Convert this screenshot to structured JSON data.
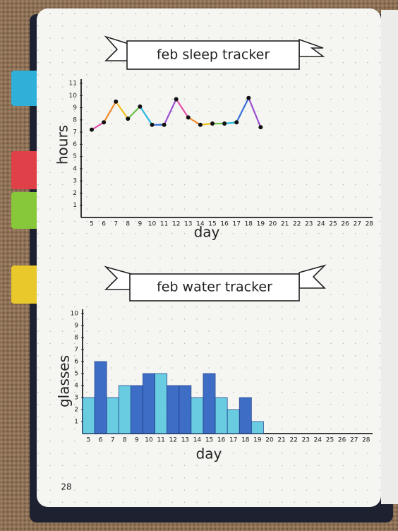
{
  "chart_data": [
    {
      "type": "line",
      "title": "feb sleep tracker",
      "y_label": "hours",
      "x_label": "day",
      "categories": [
        "5",
        "6",
        "7",
        "8",
        "9",
        "10",
        "11",
        "12",
        "13",
        "14",
        "15",
        "16",
        "17",
        "18",
        "19",
        "20",
        "21",
        "22",
        "23",
        "24",
        "25",
        "26",
        "27",
        "28"
      ],
      "values": [
        7.2,
        7.8,
        9.5,
        8.1,
        9.1,
        7.6,
        7.6,
        9.7,
        8.2,
        7.6,
        7.7,
        7.7,
        7.8,
        9.8,
        7.4,
        null,
        null,
        null,
        null,
        null,
        null,
        null,
        null,
        null
      ],
      "segment_colors": [
        "#e64fa8",
        "#f08a2a",
        "#f0c020",
        "#6cc24a",
        "#29b6e0",
        "#3a6fd8",
        "#9a4fd0"
      ],
      "color": "#111111",
      "ylim": [
        0,
        11
      ],
      "yticks": [
        1,
        2,
        3,
        4,
        5,
        6,
        7,
        8,
        9,
        10,
        11
      ]
    },
    {
      "type": "bar",
      "title": "feb water tracker",
      "y_label": "glasses",
      "x_label": "day",
      "categories": [
        "5",
        "6",
        "7",
        "8",
        "9",
        "10",
        "11",
        "12",
        "13",
        "14",
        "15",
        "16",
        "17",
        "18",
        "19",
        "20",
        "21",
        "22",
        "23",
        "24",
        "25",
        "26",
        "27",
        "28"
      ],
      "values": [
        3,
        6,
        3,
        4,
        4,
        5,
        5,
        4,
        4,
        3,
        5,
        3,
        2,
        3,
        1,
        null,
        null,
        null,
        null,
        null,
        null,
        null,
        null,
        null
      ],
      "bar_colors": [
        "#5cc8e0",
        "#2a5fc0",
        "#5cc8e0",
        "#5cc8e0",
        "#2a5fc0",
        "#2a5fc0",
        "#5cc8e0",
        "#2a5fc0",
        "#2a5fc0",
        "#5cc8e0",
        "#2a5fc0",
        "#5cc8e0",
        "#5cc8e0",
        "#2a5fc0",
        "#5cc8e0",
        null,
        null,
        null,
        null,
        null,
        null,
        null,
        null,
        null
      ],
      "ylim": [
        0,
        10
      ],
      "yticks": [
        1,
        2,
        3,
        4,
        5,
        6,
        7,
        8,
        9,
        10
      ]
    }
  ],
  "page_number": "28"
}
